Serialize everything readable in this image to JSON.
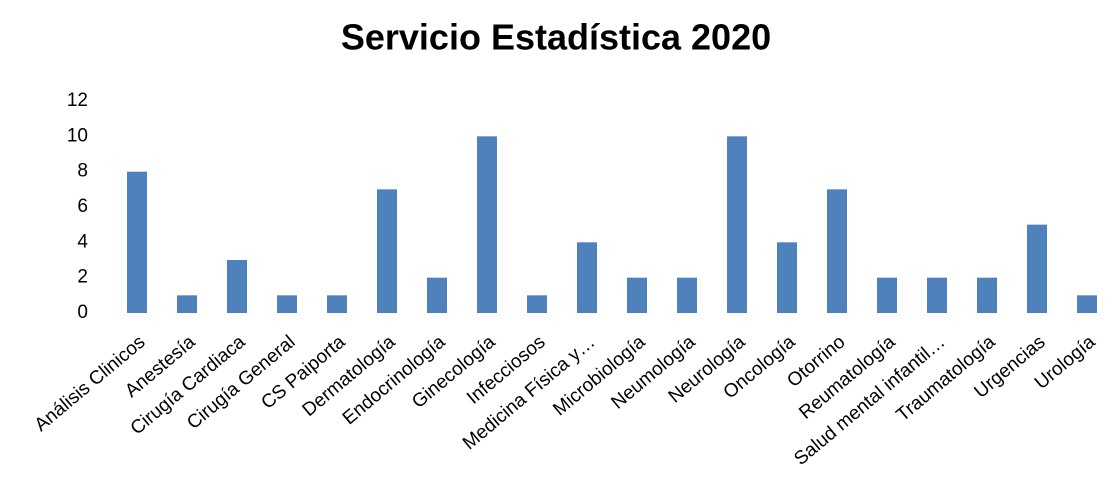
{
  "chart_data": {
    "type": "bar",
    "title": "Servicio Estadística 2020",
    "categories": [
      "Análisis Clinicos",
      "Anestesía",
      "Cirugía Cardiaca",
      "Cirugía  General",
      "CS Paiporta",
      "Dermatología",
      "Endocrinología",
      "Ginecología",
      "Infecciosos",
      "Medicina Física y…",
      "Microbiología",
      "Neumología",
      "Neurología",
      "Oncología",
      "Otorrino",
      "Reumatología",
      "Salud mental infantil…",
      "Traumatología",
      "Urgencias",
      "Urología"
    ],
    "values": [
      8,
      1,
      3,
      1,
      1,
      7,
      2,
      10,
      1,
      4,
      2,
      2,
      10,
      4,
      7,
      2,
      2,
      2,
      5,
      1
    ],
    "color": "#4f81bd",
    "ylim": [
      0,
      12
    ],
    "yticks": [
      0,
      2,
      4,
      6,
      8,
      10,
      12
    ],
    "grid": false
  }
}
